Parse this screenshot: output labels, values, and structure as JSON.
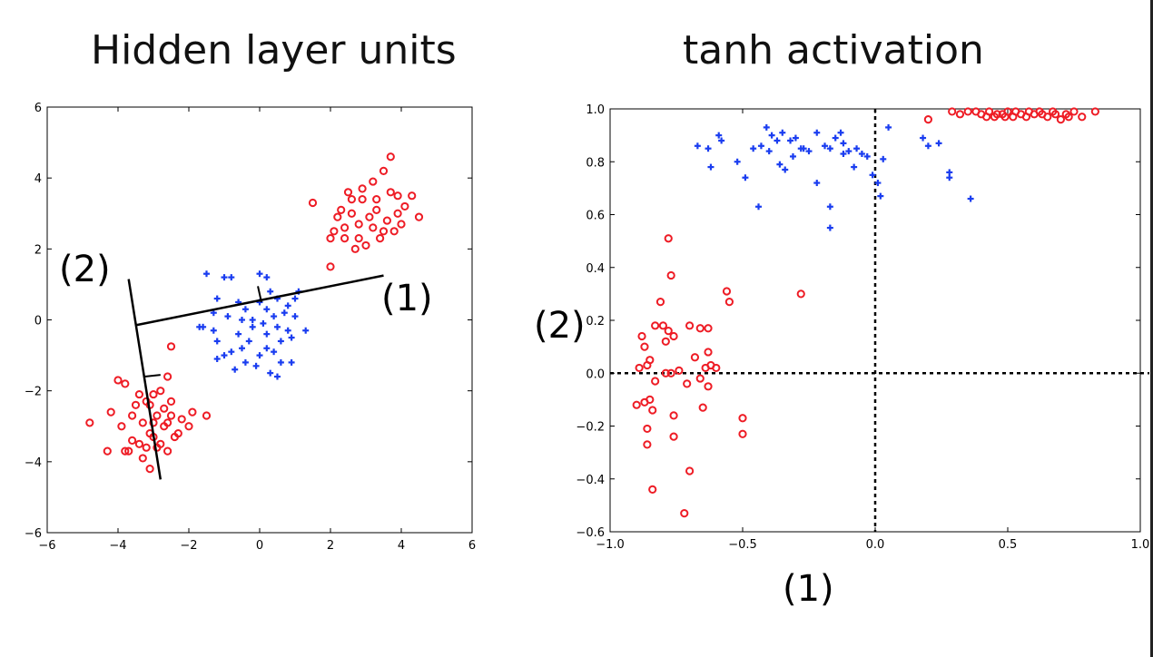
{
  "titles": {
    "left": "Hidden layer units",
    "right": "tanh activation"
  },
  "colors": {
    "red_class": "#ee1c25",
    "blue_class": "#1a3df0",
    "axis": "#000000"
  },
  "chart_data": [
    {
      "type": "scatter",
      "title": "Hidden layer units",
      "xlim": [
        -6,
        6
      ],
      "ylim": [
        -6,
        6
      ],
      "xticks": [
        -6,
        -4,
        -2,
        0,
        2,
        4,
        6
      ],
      "yticks": [
        -6,
        -4,
        -2,
        0,
        2,
        4,
        6
      ],
      "xticklabels": [
        "−6",
        "−4",
        "−2",
        "0",
        "2",
        "4",
        "6"
      ],
      "yticklabels": [
        "−6",
        "−4",
        "−2",
        "0",
        "2",
        "4",
        "6"
      ],
      "grid": false,
      "series": [
        {
          "marker": "circle",
          "color": "#ee1c25",
          "points": [
            [
              2.1,
              2.5
            ],
            [
              2.4,
              2.6
            ],
            [
              2.2,
              2.9
            ],
            [
              2.6,
              3.0
            ],
            [
              2.5,
              3.6
            ],
            [
              2.9,
              3.4
            ],
            [
              3.2,
              3.9
            ],
            [
              3.5,
              4.2
            ],
            [
              3.7,
              4.6
            ],
            [
              3.9,
              3.5
            ],
            [
              4.1,
              3.2
            ],
            [
              4.3,
              3.5
            ],
            [
              4.5,
              2.9
            ],
            [
              3.8,
              2.5
            ],
            [
              3.4,
              2.3
            ],
            [
              3.0,
              2.1
            ],
            [
              2.7,
              2.0
            ],
            [
              2.0,
              2.3
            ],
            [
              1.5,
              3.3
            ],
            [
              2.3,
              3.1
            ],
            [
              2.8,
              2.7
            ],
            [
              3.1,
              2.9
            ],
            [
              3.3,
              3.1
            ],
            [
              3.6,
              2.8
            ],
            [
              2.9,
              3.7
            ],
            [
              2.6,
              3.4
            ],
            [
              3.7,
              3.6
            ],
            [
              4.0,
              2.7
            ],
            [
              3.2,
              2.6
            ],
            [
              2.4,
              2.3
            ],
            [
              2.0,
              1.5
            ],
            [
              3.5,
              2.5
            ],
            [
              3.9,
              3.0
            ],
            [
              2.8,
              2.3
            ],
            [
              3.3,
              3.4
            ],
            [
              -4.0,
              -1.7
            ],
            [
              -3.8,
              -1.8
            ],
            [
              -3.4,
              -2.1
            ],
            [
              -3.2,
              -2.3
            ],
            [
              -3.6,
              -2.7
            ],
            [
              -3.9,
              -3.0
            ],
            [
              -4.2,
              -2.6
            ],
            [
              -4.8,
              -2.9
            ],
            [
              -4.3,
              -3.7
            ],
            [
              -3.7,
              -3.7
            ],
            [
              -3.4,
              -3.5
            ],
            [
              -3.3,
              -3.9
            ],
            [
              -3.1,
              -4.2
            ],
            [
              -2.9,
              -3.6
            ],
            [
              -2.6,
              -3.7
            ],
            [
              -2.7,
              -3.0
            ],
            [
              -2.5,
              -2.7
            ],
            [
              -2.3,
              -3.2
            ],
            [
              -2.0,
              -3.0
            ],
            [
              -1.9,
              -2.6
            ],
            [
              -1.5,
              -2.7
            ],
            [
              -2.5,
              -2.3
            ],
            [
              -2.8,
              -2.0
            ],
            [
              -2.6,
              -1.6
            ],
            [
              -2.5,
              -0.75
            ],
            [
              -3.0,
              -2.1
            ],
            [
              -3.1,
              -2.4
            ],
            [
              -3.3,
              -2.9
            ],
            [
              -3.5,
              -2.4
            ],
            [
              -2.9,
              -2.7
            ],
            [
              -2.7,
              -2.5
            ],
            [
              -3.0,
              -3.3
            ],
            [
              -3.2,
              -3.6
            ],
            [
              -2.8,
              -3.5
            ],
            [
              -3.6,
              -3.4
            ],
            [
              -3.0,
              -2.9
            ],
            [
              -2.6,
              -2.9
            ],
            [
              -2.4,
              -3.3
            ],
            [
              -3.8,
              -3.7
            ],
            [
              -2.2,
              -2.8
            ],
            [
              -3.1,
              -3.2
            ]
          ]
        },
        {
          "marker": "plus",
          "color": "#1a3df0",
          "points": [
            [
              -1.5,
              1.3
            ],
            [
              -1.0,
              1.2
            ],
            [
              -0.8,
              1.2
            ],
            [
              0.0,
              1.3
            ],
            [
              0.2,
              1.2
            ],
            [
              0.3,
              0.8
            ],
            [
              0.5,
              0.6
            ],
            [
              0.8,
              0.4
            ],
            [
              1.0,
              0.6
            ],
            [
              1.1,
              0.8
            ],
            [
              1.0,
              0.1
            ],
            [
              1.3,
              -0.3
            ],
            [
              0.8,
              -0.3
            ],
            [
              0.5,
              -0.2
            ],
            [
              0.2,
              -0.4
            ],
            [
              -0.2,
              -0.2
            ],
            [
              -0.4,
              0.3
            ],
            [
              -0.6,
              0.5
            ],
            [
              -1.2,
              0.6
            ],
            [
              -1.3,
              0.2
            ],
            [
              -1.6,
              -0.2
            ],
            [
              -1.7,
              -0.2
            ],
            [
              -1.3,
              -0.3
            ],
            [
              -1.2,
              -0.6
            ],
            [
              -1.0,
              -1.0
            ],
            [
              -1.2,
              -1.1
            ],
            [
              -0.8,
              -0.9
            ],
            [
              -0.5,
              -0.8
            ],
            [
              -0.7,
              -1.4
            ],
            [
              -0.4,
              -1.2
            ],
            [
              -0.1,
              -1.3
            ],
            [
              0.3,
              -1.5
            ],
            [
              0.5,
              -1.6
            ],
            [
              0.6,
              -1.2
            ],
            [
              0.9,
              -1.2
            ],
            [
              0.2,
              -0.8
            ],
            [
              0.0,
              0.5
            ],
            [
              -0.2,
              0.0
            ],
            [
              0.4,
              0.1
            ],
            [
              0.6,
              -0.6
            ],
            [
              -0.3,
              -0.6
            ],
            [
              0.1,
              -0.1
            ],
            [
              0.7,
              0.2
            ],
            [
              -0.9,
              0.1
            ],
            [
              -0.5,
              0.0
            ],
            [
              0.4,
              -0.9
            ],
            [
              0.0,
              -1.0
            ],
            [
              0.9,
              -0.5
            ],
            [
              -0.6,
              -0.4
            ],
            [
              0.2,
              0.3
            ]
          ]
        }
      ],
      "annotations": [
        "(2)",
        "(1)"
      ]
    },
    {
      "type": "scatter",
      "title": "tanh activation",
      "xlabel": "(1)",
      "ylabel": "(2)",
      "xlim": [
        -1.0,
        1.0
      ],
      "ylim": [
        -0.6,
        1.0
      ],
      "xticks": [
        -1.0,
        -0.5,
        0.0,
        0.5,
        1.0
      ],
      "yticks": [
        -0.6,
        -0.4,
        -0.2,
        0.0,
        0.2,
        0.4,
        0.6,
        0.8,
        1.0
      ],
      "xticklabels": [
        "−1.0",
        "−0.5",
        "0.0",
        "0.5",
        "1.0"
      ],
      "yticklabels": [
        "−0.6",
        "−0.4",
        "−0.2",
        "0.0",
        "0.2",
        "0.4",
        "0.6",
        "0.8",
        "1.0"
      ],
      "grid": false,
      "reference_lines": {
        "x": 0.0,
        "y": 0.0,
        "style": "dotted"
      },
      "series": [
        {
          "marker": "circle",
          "color": "#ee1c25",
          "points": [
            [
              -0.78,
              0.51
            ],
            [
              -0.77,
              0.37
            ],
            [
              -0.81,
              0.27
            ],
            [
              -0.56,
              0.31
            ],
            [
              -0.55,
              0.27
            ],
            [
              -0.28,
              0.3
            ],
            [
              -0.83,
              0.18
            ],
            [
              -0.8,
              0.18
            ],
            [
              -0.78,
              0.16
            ],
            [
              -0.76,
              0.14
            ],
            [
              -0.79,
              0.12
            ],
            [
              -0.7,
              0.18
            ],
            [
              -0.66,
              0.17
            ],
            [
              -0.63,
              0.17
            ],
            [
              -0.88,
              0.14
            ],
            [
              -0.87,
              0.1
            ],
            [
              -0.85,
              0.05
            ],
            [
              -0.86,
              0.03
            ],
            [
              -0.89,
              0.02
            ],
            [
              -0.79,
              0.0
            ],
            [
              -0.77,
              0.0
            ],
            [
              -0.68,
              0.06
            ],
            [
              -0.63,
              0.08
            ],
            [
              -0.62,
              0.03
            ],
            [
              -0.64,
              0.02
            ],
            [
              -0.6,
              0.02
            ],
            [
              -0.66,
              -0.02
            ],
            [
              -0.71,
              -0.04
            ],
            [
              -0.63,
              -0.05
            ],
            [
              -0.83,
              -0.03
            ],
            [
              -0.85,
              -0.1
            ],
            [
              -0.87,
              -0.11
            ],
            [
              -0.9,
              -0.12
            ],
            [
              -0.84,
              -0.14
            ],
            [
              -0.76,
              -0.16
            ],
            [
              -0.65,
              -0.13
            ],
            [
              -0.5,
              -0.17
            ],
            [
              -0.5,
              -0.23
            ],
            [
              -0.86,
              -0.21
            ],
            [
              -0.86,
              -0.27
            ],
            [
              -0.76,
              -0.24
            ],
            [
              -0.7,
              -0.37
            ],
            [
              -0.84,
              -0.44
            ],
            [
              -0.72,
              -0.53
            ],
            [
              -0.74,
              0.01
            ],
            [
              0.2,
              0.96
            ],
            [
              0.32,
              0.98
            ],
            [
              0.35,
              0.99
            ],
            [
              0.4,
              0.98
            ],
            [
              0.43,
              0.99
            ],
            [
              0.45,
              0.97
            ],
            [
              0.48,
              0.98
            ],
            [
              0.5,
              0.99
            ],
            [
              0.52,
              0.97
            ],
            [
              0.55,
              0.98
            ],
            [
              0.58,
              0.99
            ],
            [
              0.6,
              0.98
            ],
            [
              0.62,
              0.99
            ],
            [
              0.65,
              0.97
            ],
            [
              0.68,
              0.98
            ],
            [
              0.7,
              0.96
            ],
            [
              0.72,
              0.98
            ],
            [
              0.75,
              0.99
            ],
            [
              0.78,
              0.97
            ],
            [
              0.83,
              0.99
            ],
            [
              0.38,
              0.99
            ],
            [
              0.46,
              0.98
            ],
            [
              0.53,
              0.99
            ],
            [
              0.57,
              0.97
            ],
            [
              0.63,
              0.98
            ],
            [
              0.67,
              0.99
            ],
            [
              0.73,
              0.97
            ],
            [
              0.42,
              0.97
            ],
            [
              0.29,
              0.99
            ],
            [
              0.49,
              0.97
            ]
          ]
        },
        {
          "marker": "plus",
          "color": "#1a3df0",
          "points": [
            [
              -0.67,
              0.86
            ],
            [
              -0.63,
              0.85
            ],
            [
              -0.59,
              0.9
            ],
            [
              -0.58,
              0.88
            ],
            [
              -0.62,
              0.78
            ],
            [
              -0.52,
              0.8
            ],
            [
              -0.46,
              0.85
            ],
            [
              -0.43,
              0.86
            ],
            [
              -0.41,
              0.93
            ],
            [
              -0.39,
              0.9
            ],
            [
              -0.37,
              0.88
            ],
            [
              -0.35,
              0.91
            ],
            [
              -0.32,
              0.88
            ],
            [
              -0.3,
              0.89
            ],
            [
              -0.28,
              0.85
            ],
            [
              -0.27,
              0.85
            ],
            [
              -0.25,
              0.84
            ],
            [
              -0.22,
              0.91
            ],
            [
              -0.19,
              0.86
            ],
            [
              -0.17,
              0.85
            ],
            [
              -0.15,
              0.89
            ],
            [
              -0.13,
              0.91
            ],
            [
              -0.12,
              0.87
            ],
            [
              -0.1,
              0.84
            ],
            [
              -0.07,
              0.85
            ],
            [
              -0.05,
              0.83
            ],
            [
              -0.03,
              0.82
            ],
            [
              -0.01,
              0.75
            ],
            [
              0.01,
              0.72
            ],
            [
              0.03,
              0.81
            ],
            [
              0.05,
              0.93
            ],
            [
              -0.49,
              0.74
            ],
            [
              -0.44,
              0.63
            ],
            [
              -0.4,
              0.84
            ],
            [
              -0.36,
              0.79
            ],
            [
              -0.34,
              0.77
            ],
            [
              -0.31,
              0.82
            ],
            [
              -0.22,
              0.72
            ],
            [
              -0.17,
              0.63
            ],
            [
              -0.17,
              0.55
            ],
            [
              -0.12,
              0.83
            ],
            [
              -0.08,
              0.78
            ],
            [
              0.02,
              0.67
            ],
            [
              0.18,
              0.89
            ],
            [
              0.2,
              0.86
            ],
            [
              0.24,
              0.87
            ],
            [
              0.28,
              0.74
            ],
            [
              0.28,
              0.76
            ],
            [
              0.36,
              0.66
            ]
          ]
        }
      ]
    }
  ]
}
